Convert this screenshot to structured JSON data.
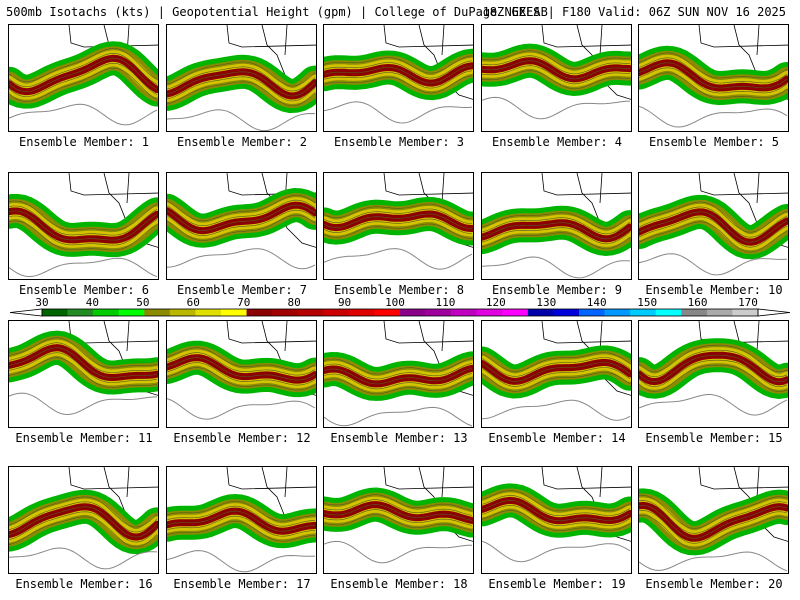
{
  "header": {
    "left": "500mb Isotachs (kts) | Geopotential Height (gpm) | College of DuPage NEXLAB",
    "right": "18Z GEFS | F180 Valid: 06Z SUN NOV 16 2025"
  },
  "panels": [
    {
      "label": "Ensemble Member: 1"
    },
    {
      "label": "Ensemble Member: 2"
    },
    {
      "label": "Ensemble Member: 3"
    },
    {
      "label": "Ensemble Member: 4"
    },
    {
      "label": "Ensemble Member: 5"
    },
    {
      "label": "Ensemble Member: 6"
    },
    {
      "label": "Ensemble Member: 7"
    },
    {
      "label": "Ensemble Member: 8"
    },
    {
      "label": "Ensemble Member: 9"
    },
    {
      "label": "Ensemble Member: 10"
    },
    {
      "label": "Ensemble Member: 11"
    },
    {
      "label": "Ensemble Member: 12"
    },
    {
      "label": "Ensemble Member: 13"
    },
    {
      "label": "Ensemble Member: 14"
    },
    {
      "label": "Ensemble Member: 15"
    },
    {
      "label": "Ensemble Member: 16"
    },
    {
      "label": "Ensemble Member: 17"
    },
    {
      "label": "Ensemble Member: 18"
    },
    {
      "label": "Ensemble Member: 19"
    },
    {
      "label": "Ensemble Member: 20"
    }
  ],
  "colorbar": {
    "ticks": [
      "30",
      "40",
      "50",
      "60",
      "70",
      "80",
      "90",
      "100",
      "110",
      "120",
      "130",
      "140",
      "150",
      "160",
      "170"
    ],
    "colors": [
      "#006400",
      "#228b22",
      "#00cc00",
      "#00ff00",
      "#8b8b00",
      "#b8b800",
      "#e0e000",
      "#ffff00",
      "#8b0000",
      "#a00000",
      "#b50000",
      "#cc0000",
      "#e00000",
      "#ff0000",
      "#8b008b",
      "#a000a0",
      "#c000c0",
      "#e000e0",
      "#ff00ff",
      "#0000aa",
      "#0000dd",
      "#0066ff",
      "#0099ff",
      "#00ccff",
      "#00ffff",
      "#888888",
      "#aaaaaa",
      "#cccccc"
    ]
  }
}
